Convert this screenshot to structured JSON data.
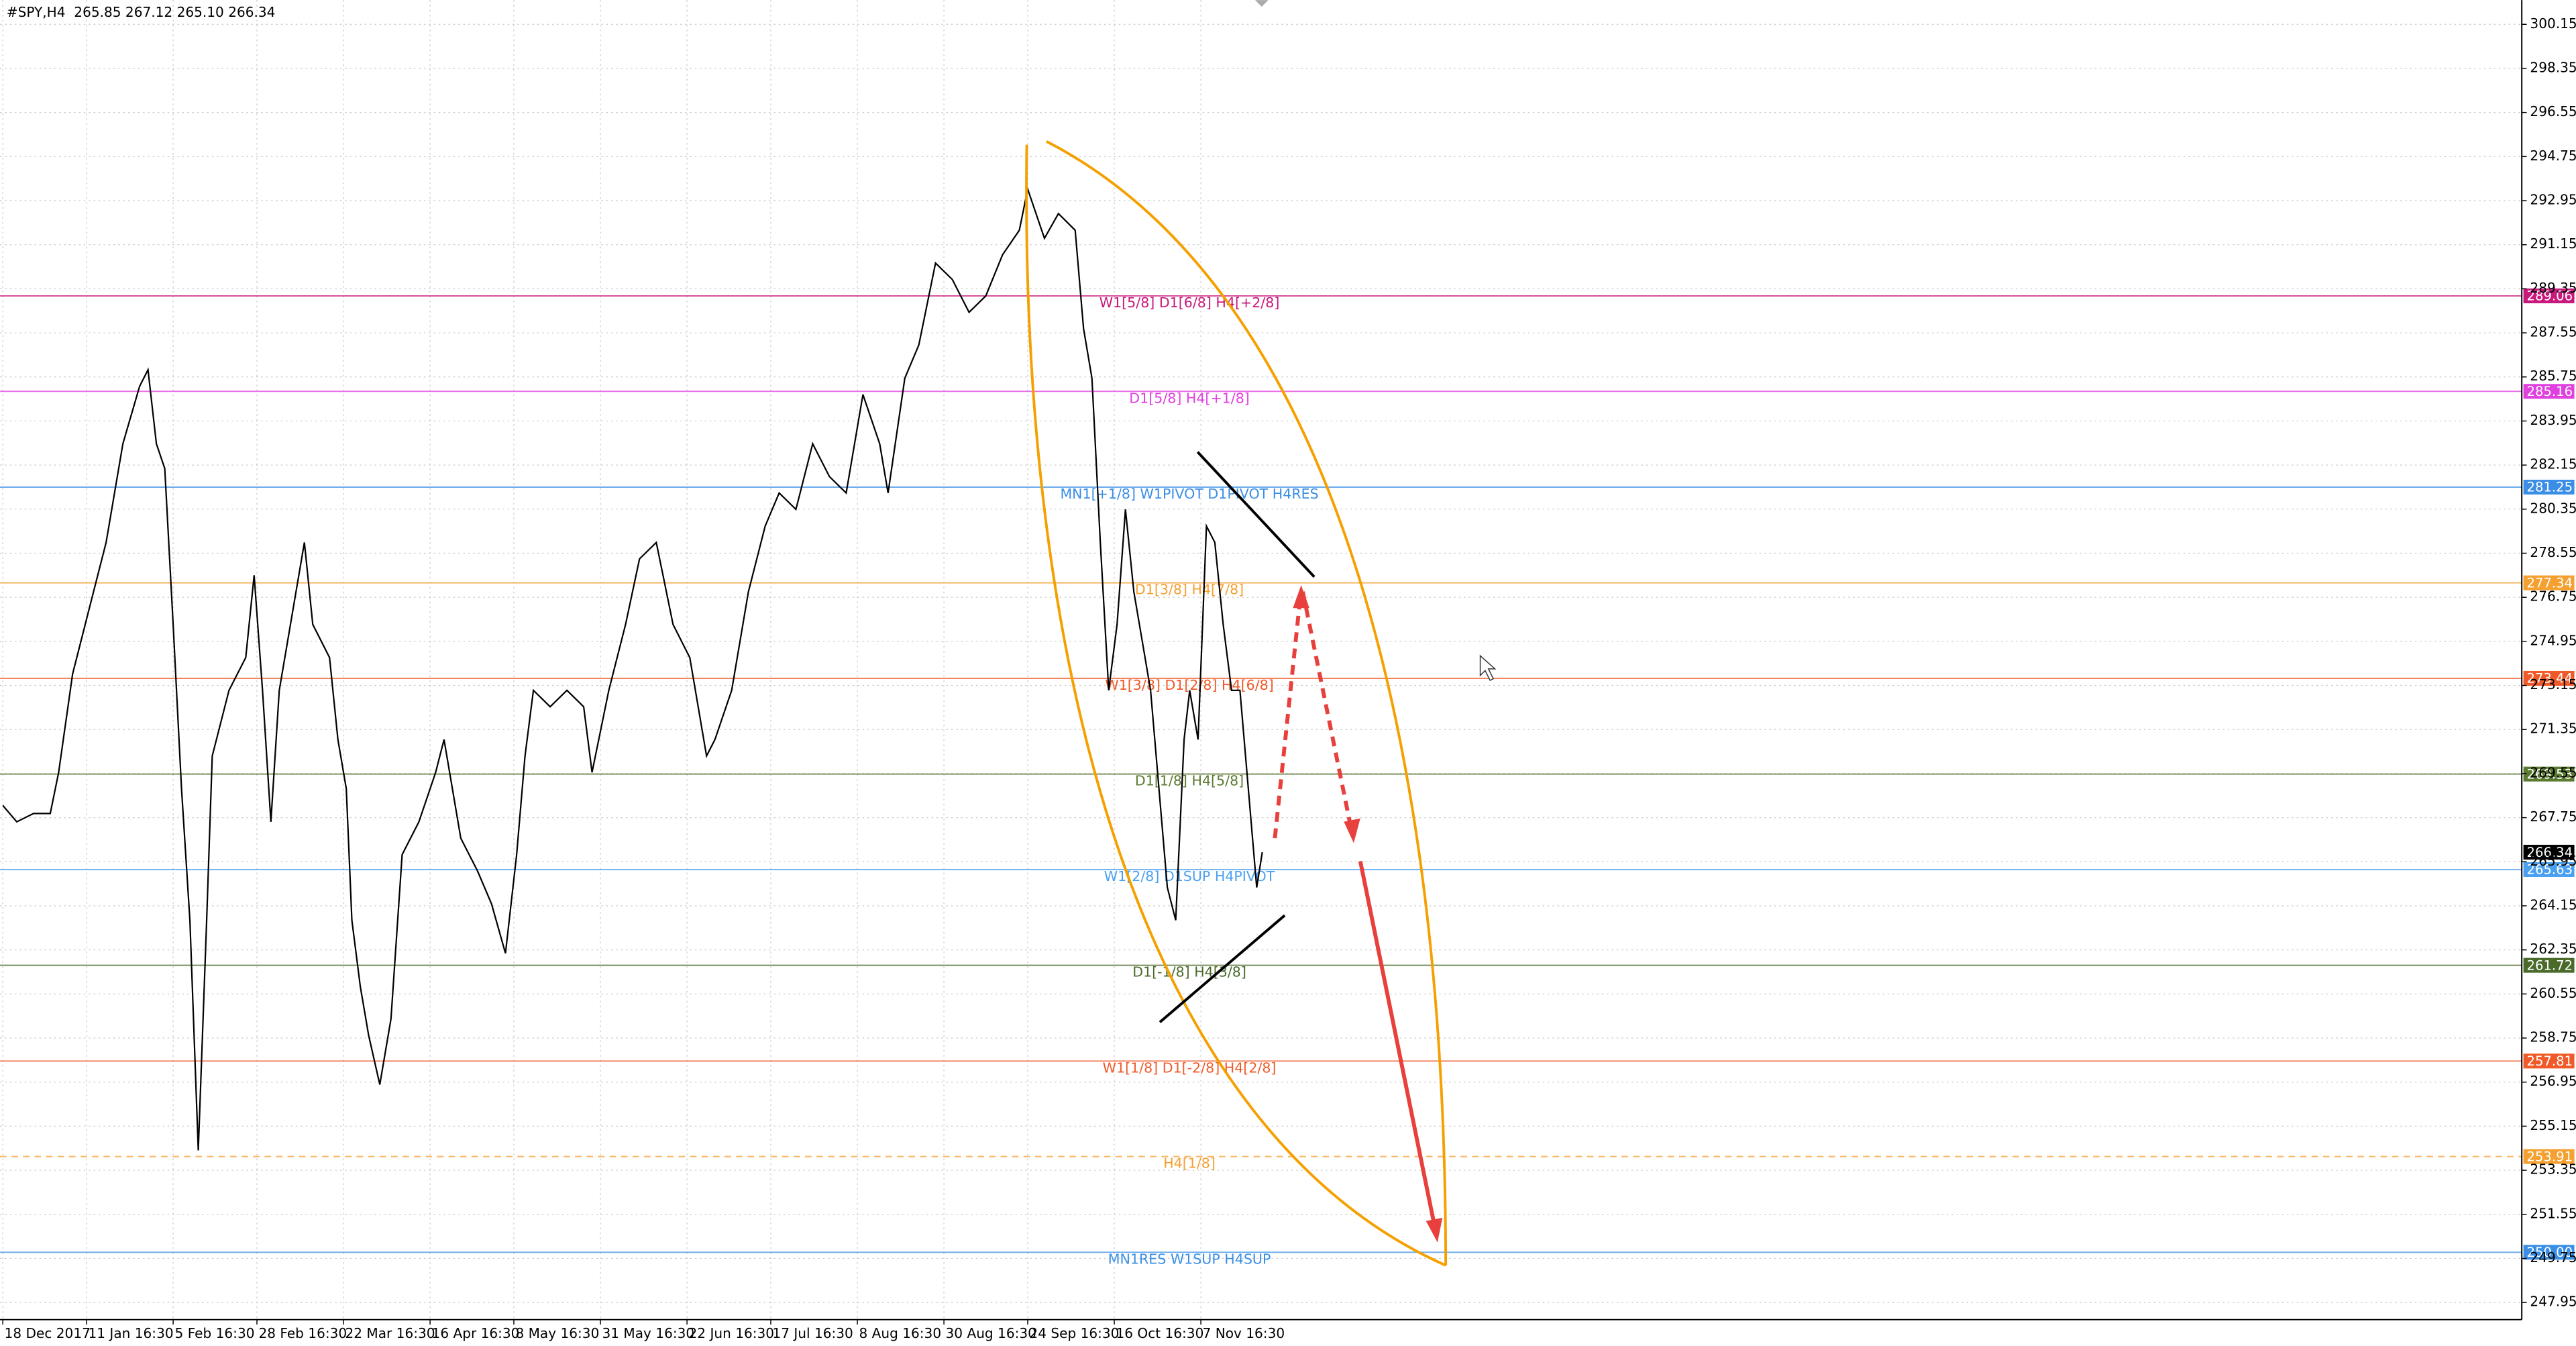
{
  "chart_data": {
    "type": "line",
    "title": "#SPY,H4  265.85 267.12 265.10 266.34",
    "xlim": [
      0,
      903
    ],
    "xticks": [
      {
        "value": 1,
        "label": "18 Dec 2017"
      },
      {
        "value": 31,
        "label": "11 Jan 16:30"
      },
      {
        "value": 62,
        "label": "5 Feb 16:30"
      },
      {
        "value": 92,
        "label": "28 Feb 16:30"
      },
      {
        "value": 123,
        "label": "22 Mar 16:30"
      },
      {
        "value": 154,
        "label": "16 Apr 16:30"
      },
      {
        "value": 184,
        "label": "8 May 16:30"
      },
      {
        "value": 215,
        "label": "31 May 16:30"
      },
      {
        "value": 246,
        "label": "22 Jun 16:30"
      },
      {
        "value": 276,
        "label": "17 Jul 16:30"
      },
      {
        "value": 307,
        "label": "8 Aug 16:30"
      },
      {
        "value": 338,
        "label": "30 Aug 16:30"
      },
      {
        "value": 368,
        "label": "24 Sep 16:30"
      },
      {
        "value": 399,
        "label": "16 Oct 16:30"
      },
      {
        "value": 430,
        "label": "7 Nov 16:30"
      }
    ],
    "ylim": [
      247.25,
      301.14
    ],
    "yticks": [
      300.15,
      298.35,
      296.55,
      294.75,
      292.95,
      291.15,
      289.35,
      287.55,
      285.75,
      283.95,
      282.15,
      280.35,
      278.55,
      276.75,
      274.95,
      273.15,
      271.35,
      269.55,
      267.75,
      265.95,
      264.15,
      262.35,
      260.55,
      258.75,
      256.95,
      255.15,
      253.35,
      251.55,
      249.75,
      247.95
    ],
    "grid": true,
    "series": [
      {
        "color": "#000000",
        "x": [
          1,
          6,
          12,
          18,
          21,
          26,
          32,
          38,
          44,
          50,
          53,
          56,
          59,
          62,
          65,
          68,
          71,
          74,
          76,
          82,
          88,
          91,
          94,
          97,
          100,
          106,
          109,
          112,
          118,
          121,
          124,
          126,
          129,
          132,
          136,
          140,
          144,
          150,
          156,
          159,
          165,
          171,
          176,
          181,
          185,
          188,
          191,
          197,
          203,
          209,
          212,
          218,
          224,
          229,
          235,
          238,
          241,
          247,
          253,
          256,
          262,
          268,
          274,
          279,
          285,
          291,
          297,
          303,
          309,
          315,
          318,
          324,
          329,
          335,
          341,
          347,
          353,
          359,
          365,
          368,
          374,
          379,
          385,
          388,
          391,
          394,
          397,
          400,
          403,
          406,
          409,
          412,
          415,
          418,
          421,
          424,
          426,
          429,
          432,
          435,
          438,
          441,
          444,
          447,
          450,
          452
        ],
        "values": [
          268.25,
          267.58,
          267.92,
          267.92,
          269.6,
          273.62,
          276.31,
          278.99,
          283.02,
          285.37,
          286.04,
          283.02,
          282.01,
          275.64,
          268.93,
          263.56,
          254.16,
          263.56,
          270.27,
          272.95,
          274.29,
          277.65,
          272.95,
          267.58,
          272.95,
          276.98,
          278.99,
          275.64,
          274.29,
          270.94,
          268.93,
          263.56,
          260.87,
          258.86,
          256.85,
          259.53,
          266.24,
          267.58,
          269.6,
          270.94,
          266.91,
          265.57,
          264.23,
          262.21,
          266.24,
          270.27,
          272.95,
          272.28,
          272.95,
          272.28,
          269.6,
          272.95,
          275.64,
          278.32,
          278.99,
          277.32,
          275.64,
          274.29,
          270.27,
          270.94,
          272.95,
          276.98,
          279.66,
          281.01,
          280.34,
          283.02,
          281.68,
          281.01,
          285.03,
          283.02,
          281.01,
          285.7,
          287.05,
          290.4,
          289.73,
          288.39,
          289.06,
          290.74,
          291.74,
          293.42,
          291.41,
          292.42,
          291.74,
          287.72,
          285.7,
          278.99,
          272.95,
          275.64,
          280.34,
          276.98,
          274.97,
          272.95,
          268.93,
          264.9,
          263.56,
          270.94,
          272.95,
          270.94,
          279.66,
          278.99,
          275.64,
          272.95,
          272.95,
          268.93,
          264.9,
          266.34
        ]
      }
    ],
    "levels": [
      {
        "name": "W1[5/8] D1[6/8] H4[+2/8]",
        "value": 289.06,
        "color": "#c8187c",
        "dashed": false
      },
      {
        "name": "D1[5/8] H4[+1/8]",
        "value": 285.16,
        "color": "#e040e0",
        "dashed": false
      },
      {
        "name": "MN1[+1/8] W1PIVOT D1PIVOT H4RES",
        "value": 281.25,
        "color": "#3a8ee6",
        "dashed": false
      },
      {
        "name": "D1[3/8] H4[7/8]",
        "value": 277.34,
        "color": "#f5a030",
        "dashed": false
      },
      {
        "name": "W1[3/8] D1[2/8] H4[6/8]",
        "value": 273.44,
        "color": "#f05a28",
        "dashed": false
      },
      {
        "name": "D1[1/8] H4[5/8]",
        "value": 269.53,
        "color": "#5a7a30",
        "dashed": false
      },
      {
        "name": "W1[2/8] D1SUP H4PIVOT",
        "value": 265.63,
        "color": "#4aa0f0",
        "dashed": false
      },
      {
        "name": "D1[-1/8] H4[3/8]",
        "value": 261.72,
        "color": "#4a6a2a",
        "dashed": false
      },
      {
        "name": "W1[1/8] D1[-2/8] H4[2/8]",
        "value": 257.81,
        "color": "#f05a28",
        "dashed": false
      },
      {
        "name": "H4[1/8]",
        "value": 253.91,
        "color": "#f5a030",
        "dashed": true
      },
      {
        "name": "MN1RES W1SUP H4SUP",
        "value": 250,
        "label": "250.00",
        "color": "#3a8ee6",
        "dashed": false
      }
    ]
  }
}
